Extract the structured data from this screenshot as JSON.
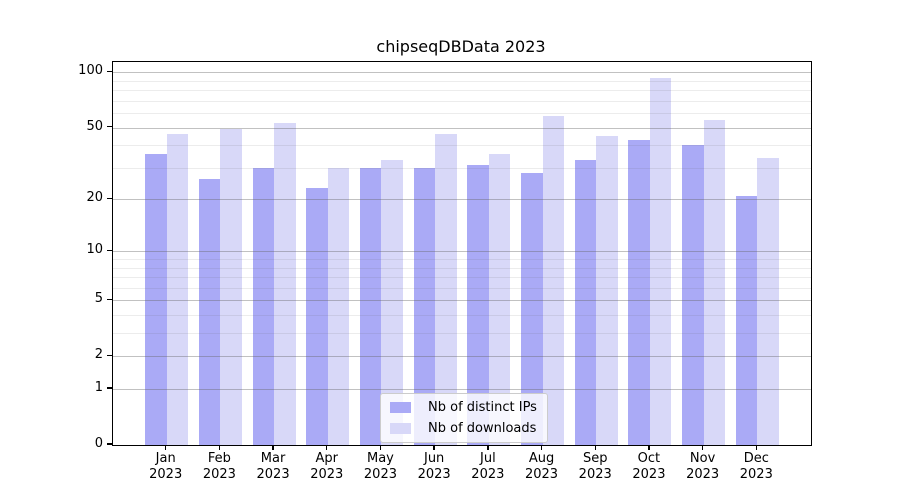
{
  "title": "chipseqDBData 2023",
  "chart_data": {
    "type": "bar",
    "title": "chipseqDBData 2023",
    "categories": [
      "Jan 2023",
      "Feb 2023",
      "Mar 2023",
      "Apr 2023",
      "May 2023",
      "Jun 2023",
      "Jul 2023",
      "Aug 2023",
      "Sep 2023",
      "Oct 2023",
      "Nov 2023",
      "Dec 2023"
    ],
    "series": [
      {
        "name": "Nb of distinct IPs",
        "color": "#aaaaf6",
        "values": [
          36,
          26,
          30,
          23,
          30,
          30,
          31,
          28,
          33,
          43,
          40,
          21
        ]
      },
      {
        "name": "Nb of downloads",
        "color": "#d8d8f8",
        "values": [
          46,
          49,
          53,
          30,
          33,
          46,
          36,
          58,
          45,
          93,
          55,
          34
        ]
      }
    ],
    "yscale": "log1p",
    "y_ticks": [
      0,
      1,
      2,
      5,
      10,
      20,
      50,
      100
    ],
    "y_minor_ticks": [
      3,
      4,
      6,
      7,
      8,
      9,
      30,
      40,
      60,
      70,
      80,
      90
    ],
    "ylim": [
      0,
      114
    ],
    "xlabel": "",
    "ylabel": "",
    "grid": true,
    "grid_major_color": "#c3c3c3",
    "grid_minor_color": "#ebebeb",
    "axis_color": "#000000",
    "legend_position": "lower center"
  }
}
